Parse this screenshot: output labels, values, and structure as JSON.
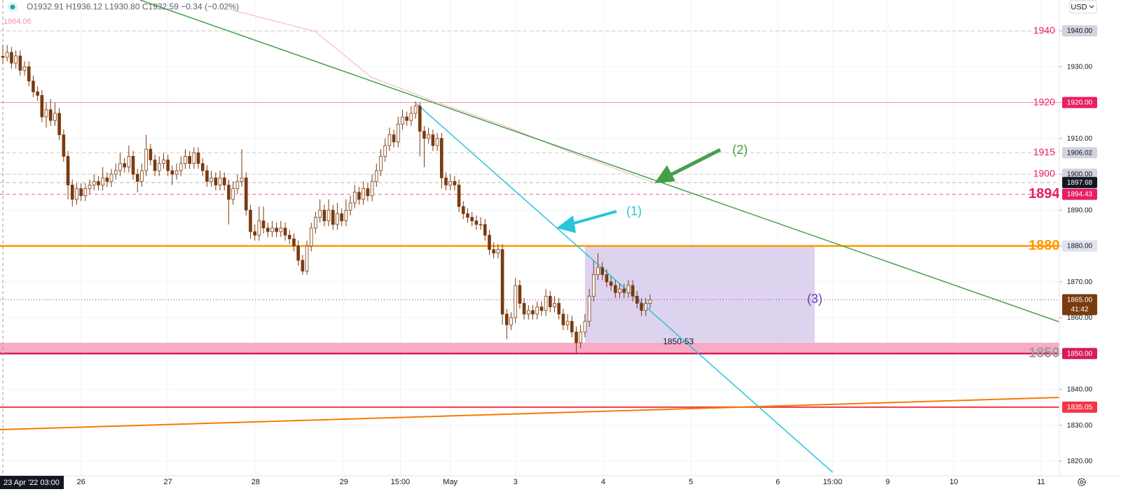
{
  "chart_data": {
    "type": "candlestick",
    "header": {
      "ohlc": [
        "O1932.91",
        "H1936.12",
        "L1930.80",
        "C1932.59",
        "−0.34 (−0.02%)"
      ],
      "corner_label": "1964.06",
      "currency": "USD"
    },
    "crosshair": {
      "x": 0,
      "label": "23 Apr '22 03:00"
    },
    "xlim": [
      -0.65,
      243.2
    ],
    "ylim": [
      1815.9,
      1948.6
    ],
    "grid": true,
    "up_color": "#ffffff",
    "down_color": "#7a3b0f",
    "xticks": [
      {
        "value": 18,
        "label": "26"
      },
      {
        "value": 38,
        "label": "27"
      },
      {
        "value": 58.2,
        "label": "28"
      },
      {
        "value": 78.5,
        "label": "29"
      },
      {
        "value": 91.5,
        "label": "15:00"
      },
      {
        "value": 103,
        "label": "May"
      },
      {
        "value": 118,
        "label": "3"
      },
      {
        "value": 138.2,
        "label": "4"
      },
      {
        "value": 158.4,
        "label": "5"
      },
      {
        "value": 178.4,
        "label": "6"
      },
      {
        "value": 191,
        "label": "15:00"
      },
      {
        "value": 203.7,
        "label": "9"
      },
      {
        "value": 218.9,
        "label": "10"
      },
      {
        "value": 239,
        "label": "11"
      }
    ],
    "yticks": [
      {
        "value": 1940,
        "label": "1940.00",
        "bg": "#d1d4dc",
        "fg": "#131722"
      },
      {
        "value": 1930,
        "label": "1930.00"
      },
      {
        "value": 1920,
        "label": "1920.00",
        "bg": "#e91e63",
        "fg": "#ffffff"
      },
      {
        "value": 1910,
        "label": "1910.00"
      },
      {
        "value": 1900,
        "label": "1900.00",
        "bg": "#d1d4dc",
        "fg": "#131722"
      },
      {
        "value": 1890,
        "label": "1890.00"
      },
      {
        "value": 1880,
        "label": "1880.00",
        "bg": "#e0e3eb",
        "fg": "#131722"
      },
      {
        "value": 1870,
        "label": "1870.00"
      },
      {
        "value": 1860,
        "label": "1860.00"
      },
      {
        "value": 1850,
        "label": "1850.00",
        "bg": "#d81b60",
        "fg": "#ffffff"
      },
      {
        "value": 1840,
        "label": "1840.00"
      },
      {
        "value": 1830,
        "label": "1830.00"
      },
      {
        "value": 1820,
        "label": "1820.00"
      }
    ],
    "price_tags": [
      {
        "value": 1906.02,
        "label": "1906.02",
        "bg": "#d1d4dc",
        "fg": "#131722"
      },
      {
        "value": 1897.68,
        "label": "1897.68",
        "bg": "#131722",
        "fg": "#ffffff"
      },
      {
        "value": 1894.43,
        "label": "1894.43",
        "bg": "#e91e63",
        "fg": "#ffffff"
      },
      {
        "value": 1865,
        "label": "1865.00",
        "sublabel": "41:42",
        "bg": "#7a3b0f",
        "fg": "#ffffff"
      },
      {
        "value": 1835.05,
        "label": "1835.05",
        "bg": "#f23645",
        "fg": "#ffffff"
      }
    ],
    "levels": [
      {
        "value": 1940,
        "color": "#c8c8c8",
        "width": 1,
        "style": "dashed"
      },
      {
        "value": 1920,
        "color": "#f48fb1",
        "width": 1,
        "style": "solid"
      },
      {
        "value": 1906.02,
        "color": "#c8c8c8",
        "width": 1,
        "style": "dashed"
      },
      {
        "value": 1900,
        "color": "#c8c8c8",
        "width": 1,
        "style": "dashed"
      },
      {
        "value": 1897.68,
        "color": "#b0b0b0",
        "width": 1,
        "style": "dashed"
      },
      {
        "value": 1894.43,
        "color": "#f06292",
        "width": 1,
        "style": "dashed"
      },
      {
        "value": 1880,
        "color": "#ff9800",
        "width": 2.5,
        "style": "solid"
      },
      {
        "value": 1865,
        "color": "#9c27b0",
        "width": 1,
        "style": "dotted"
      },
      {
        "value": 1850,
        "color": "#d81b60",
        "width": 2.5,
        "style": "solid"
      },
      {
        "value": 1835.05,
        "color": "#f23645",
        "width": 2,
        "style": "solid"
      }
    ],
    "zone": {
      "y": [
        1850,
        1853
      ],
      "color": "#f48fb1"
    },
    "box": {
      "x": [
        134,
        186.9
      ],
      "y": [
        1853,
        1880
      ],
      "color": "#d1c4e9"
    },
    "trendlines": [
      {
        "color": "#43a047",
        "width": 1.5,
        "x": [
          31.6,
          243.2
        ],
        "y": [
          1948.6,
          1858.83
        ]
      },
      {
        "color": "#26c6da",
        "width": 1.5,
        "x": [
          95.2,
          191
        ],
        "y": [
          1919.71,
          1816.88
        ]
      },
      {
        "color": "#f57c00",
        "width": 2,
        "x": [
          -0.65,
          243.2
        ],
        "y": [
          1828.78,
          1837.76
        ]
      }
    ],
    "ma": {
      "color": "#f8bbd0",
      "x": [
        52.6,
        71.9,
        84.8,
        99.4,
        115.5,
        131.6,
        150.2
      ],
      "values": [
        1945.85,
        1939.8,
        1927.1,
        1920.3,
        1913.5,
        1905.7,
        1897.5
      ]
    },
    "annotations": [
      {
        "text": "1940",
        "x": 239.7,
        "y": 1940,
        "color": "#e91e63",
        "size": 14
      },
      {
        "text": "1920",
        "x": 239.7,
        "y": 1920,
        "color": "#e91e63",
        "size": 14
      },
      {
        "text": "1915",
        "x": 239.7,
        "y": 1906.02,
        "color": "#e91e63",
        "size": 14
      },
      {
        "text": "1900",
        "x": 239.7,
        "y": 1900,
        "color": "#e91e63",
        "size": 14
      },
      {
        "text": "1894",
        "x": 239.7,
        "y": 1894.43,
        "color": "#e91e63",
        "size": 20
      },
      {
        "text": "1880",
        "x": 239.7,
        "y": 1880,
        "color": "#ff9800",
        "size": 20
      },
      {
        "text": "1850",
        "x": 239.7,
        "y": 1850,
        "color": "#9e9e9e",
        "size": 20
      },
      {
        "text": "1850-53",
        "x": 155.5,
        "y": 1853.2,
        "color": "#131722",
        "size": 12
      },
      {
        "text": "(3)",
        "x": 186.9,
        "y": 1865,
        "color": "#673ab7",
        "size": 18
      },
      {
        "text": "(1)",
        "x": 145.3,
        "y": 1889.5,
        "color": "#26c6da",
        "size": 18
      },
      {
        "text": "(2)",
        "x": 169.7,
        "y": 1906.6,
        "color": "#43a047",
        "size": 18
      }
    ],
    "candles": [
      [
        1932.91,
        1936.12,
        1930.8,
        1932.59
      ],
      [
        1932.6,
        1936,
        1931.5,
        1934
      ],
      [
        1934,
        1935.5,
        1929.5,
        1931
      ],
      [
        1931,
        1934.5,
        1929.5,
        1933
      ],
      [
        1933,
        1934.5,
        1927.5,
        1929
      ],
      [
        1929,
        1931.5,
        1927.5,
        1930
      ],
      [
        1930,
        1931.5,
        1924.5,
        1926
      ],
      [
        1926,
        1927.5,
        1921.5,
        1923
      ],
      [
        1923,
        1924.5,
        1920.5,
        1922
      ],
      [
        1922,
        1923.5,
        1914.5,
        1916
      ],
      [
        1916,
        1920,
        1913,
        1918
      ],
      [
        1918,
        1921,
        1913.5,
        1915
      ],
      [
        1915,
        1920,
        1913.5,
        1917
      ],
      [
        1917,
        1918.5,
        1909.5,
        1911
      ],
      [
        1911,
        1912.5,
        1903.5,
        1905
      ],
      [
        1905,
        1906.5,
        1893,
        1897
      ],
      [
        1897,
        1898.5,
        1891,
        1893
      ],
      [
        1893,
        1897.5,
        1891.5,
        1896
      ],
      [
        1896,
        1897.5,
        1892.5,
        1894
      ],
      [
        1894,
        1897.5,
        1892.5,
        1896
      ],
      [
        1896,
        1898.5,
        1894.5,
        1897
      ],
      [
        1897,
        1900,
        1895.5,
        1898
      ],
      [
        1898,
        1899.5,
        1895.5,
        1897
      ],
      [
        1897,
        1902,
        1895.5,
        1899
      ],
      [
        1899,
        1900.5,
        1896.5,
        1898
      ],
      [
        1898,
        1901.5,
        1896.5,
        1900
      ],
      [
        1900,
        1903,
        1898.5,
        1901
      ],
      [
        1901,
        1906,
        1899.5,
        1903
      ],
      [
        1903,
        1904.5,
        1900.5,
        1902
      ],
      [
        1902,
        1908,
        1900.5,
        1905
      ],
      [
        1905,
        1906.5,
        1898.5,
        1900
      ],
      [
        1900,
        1901.5,
        1895,
        1898
      ],
      [
        1898,
        1903,
        1896.5,
        1901
      ],
      [
        1901,
        1911,
        1899.5,
        1907
      ],
      [
        1907,
        1908.5,
        1902.5,
        1904
      ],
      [
        1904,
        1905.5,
        1899.5,
        1901
      ],
      [
        1901,
        1905,
        1899.5,
        1903
      ],
      [
        1903,
        1906,
        1901.5,
        1904
      ],
      [
        1904,
        1905.5,
        1899.5,
        1901
      ],
      [
        1901,
        1902.5,
        1897,
        1900
      ],
      [
        1900,
        1903,
        1898.5,
        1901
      ],
      [
        1901,
        1905,
        1899.5,
        1903
      ],
      [
        1903,
        1907,
        1901.5,
        1905
      ],
      [
        1905,
        1906.5,
        1901.5,
        1903
      ],
      [
        1903,
        1907.5,
        1901.5,
        1906
      ],
      [
        1906,
        1907.5,
        1901.5,
        1903
      ],
      [
        1903,
        1904.5,
        1899.5,
        1901
      ],
      [
        1901,
        1902.5,
        1896.5,
        1898
      ],
      [
        1898,
        1901,
        1896.5,
        1899
      ],
      [
        1899,
        1900.5,
        1895.5,
        1897
      ],
      [
        1897,
        1901,
        1895.5,
        1899
      ],
      [
        1899,
        1900.5,
        1895.5,
        1897
      ],
      [
        1897,
        1898.5,
        1886,
        1893
      ],
      [
        1893,
        1898,
        1891.5,
        1896
      ],
      [
        1896,
        1900,
        1894.5,
        1898
      ],
      [
        1898,
        1907,
        1896.5,
        1899
      ],
      [
        1899,
        1900.5,
        1888.5,
        1890
      ],
      [
        1890,
        1891.5,
        1882,
        1884
      ],
      [
        1884,
        1886,
        1881.5,
        1883
      ],
      [
        1883,
        1891,
        1881.5,
        1887
      ],
      [
        1887,
        1891,
        1883.5,
        1885
      ],
      [
        1885,
        1886.5,
        1882.5,
        1884
      ],
      [
        1884,
        1887,
        1882.5,
        1885
      ],
      [
        1885,
        1886.5,
        1882.5,
        1884
      ],
      [
        1884,
        1887,
        1882.5,
        1885
      ],
      [
        1885,
        1886.5,
        1881.5,
        1883
      ],
      [
        1883,
        1884.5,
        1880.5,
        1882
      ],
      [
        1882,
        1883.5,
        1878.5,
        1880
      ],
      [
        1880,
        1881.5,
        1874.5,
        1876
      ],
      [
        1876,
        1877.5,
        1872,
        1873
      ],
      [
        1873,
        1881.5,
        1872,
        1880
      ],
      [
        1880,
        1886.5,
        1878.5,
        1885
      ],
      [
        1885,
        1889.5,
        1883.5,
        1888
      ],
      [
        1888,
        1893,
        1886.5,
        1890
      ],
      [
        1890,
        1891.5,
        1885.5,
        1887
      ],
      [
        1887,
        1893,
        1885.5,
        1890
      ],
      [
        1890,
        1891.5,
        1884.5,
        1886
      ],
      [
        1886,
        1892,
        1884.5,
        1889
      ],
      [
        1889,
        1890.5,
        1885.5,
        1887
      ],
      [
        1887,
        1893,
        1885.5,
        1890
      ],
      [
        1890,
        1894,
        1888.5,
        1892
      ],
      [
        1892,
        1897,
        1890.5,
        1895
      ],
      [
        1895,
        1896.5,
        1891.5,
        1893
      ],
      [
        1893,
        1898,
        1891.5,
        1896
      ],
      [
        1896,
        1897.5,
        1892.5,
        1894
      ],
      [
        1894,
        1900,
        1892.5,
        1898
      ],
      [
        1898,
        1903,
        1896.5,
        1901
      ],
      [
        1901,
        1907,
        1899.5,
        1905
      ],
      [
        1905,
        1910,
        1903.5,
        1908
      ],
      [
        1908,
        1913,
        1906.5,
        1911
      ],
      [
        1911,
        1912.5,
        1907.5,
        1909
      ],
      [
        1909,
        1916,
        1907.5,
        1914
      ],
      [
        1914,
        1918,
        1912.5,
        1916
      ],
      [
        1916,
        1917.5,
        1913.5,
        1915
      ],
      [
        1915,
        1919,
        1913.5,
        1917
      ],
      [
        1917,
        1920.3,
        1915.5,
        1919
      ],
      [
        1919,
        1920,
        1905,
        1912
      ],
      [
        1912,
        1913.5,
        1902,
        1910
      ],
      [
        1910,
        1913,
        1908.5,
        1911
      ],
      [
        1911,
        1912.5,
        1906.5,
        1908
      ],
      [
        1908,
        1911.5,
        1906.5,
        1910
      ],
      [
        1910,
        1911.5,
        1896,
        1899
      ],
      [
        1899,
        1900.5,
        1895.5,
        1897
      ],
      [
        1897,
        1900,
        1895.5,
        1898
      ],
      [
        1898,
        1899.5,
        1895.5,
        1897
      ],
      [
        1897,
        1898.5,
        1889.5,
        1891
      ],
      [
        1891,
        1892.5,
        1887.5,
        1889
      ],
      [
        1889,
        1890.5,
        1886.5,
        1888
      ],
      [
        1888,
        1889.5,
        1885.5,
        1887
      ],
      [
        1887,
        1888.5,
        1884.5,
        1886
      ],
      [
        1886,
        1888,
        1884.5,
        1886
      ],
      [
        1886,
        1887.5,
        1881.5,
        1883
      ],
      [
        1883,
        1884.5,
        1877.5,
        1879
      ],
      [
        1879,
        1881,
        1876.5,
        1878
      ],
      [
        1878,
        1880.5,
        1876.5,
        1879
      ],
      [
        1879,
        1880.5,
        1858,
        1861
      ],
      [
        1861,
        1862.5,
        1854,
        1858
      ],
      [
        1858,
        1861.5,
        1856.5,
        1860
      ],
      [
        1860,
        1871,
        1858.5,
        1869
      ],
      [
        1869,
        1870.5,
        1862.5,
        1864
      ],
      [
        1864,
        1865.5,
        1859.5,
        1861
      ],
      [
        1861,
        1863.5,
        1859.5,
        1862
      ],
      [
        1862,
        1863.5,
        1859.5,
        1861
      ],
      [
        1861,
        1864.5,
        1859.5,
        1863
      ],
      [
        1863,
        1864.5,
        1860.5,
        1862
      ],
      [
        1862,
        1868,
        1860.5,
        1866
      ],
      [
        1866,
        1867.5,
        1861.5,
        1863
      ],
      [
        1863,
        1866,
        1861.5,
        1864
      ],
      [
        1864,
        1865.5,
        1859.5,
        1861
      ],
      [
        1861,
        1862.5,
        1856.5,
        1858
      ],
      [
        1858,
        1861,
        1856.5,
        1859
      ],
      [
        1859,
        1860.5,
        1854.5,
        1856
      ],
      [
        1856,
        1857.5,
        1850,
        1853
      ],
      [
        1853,
        1858,
        1851.5,
        1856
      ],
      [
        1856,
        1861,
        1854.5,
        1859
      ],
      [
        1859,
        1868,
        1857.5,
        1866
      ],
      [
        1866,
        1876,
        1864.5,
        1872
      ],
      [
        1872,
        1878,
        1870.5,
        1874
      ],
      [
        1874,
        1875.5,
        1870.5,
        1872
      ],
      [
        1872,
        1873.5,
        1868.5,
        1870
      ],
      [
        1870,
        1871.5,
        1867.5,
        1869
      ],
      [
        1869,
        1870.5,
        1865.5,
        1867
      ],
      [
        1867,
        1869.5,
        1865.5,
        1868
      ],
      [
        1868,
        1869.5,
        1865.5,
        1867
      ],
      [
        1867,
        1870.5,
        1865.5,
        1869
      ],
      [
        1869,
        1870.5,
        1864.5,
        1866
      ],
      [
        1866,
        1867.5,
        1862.5,
        1864
      ],
      [
        1864,
        1865.5,
        1860.5,
        1862
      ],
      [
        1862,
        1865.5,
        1860.5,
        1864
      ],
      [
        1864,
        1866.5,
        1862.5,
        1865
      ]
    ]
  }
}
